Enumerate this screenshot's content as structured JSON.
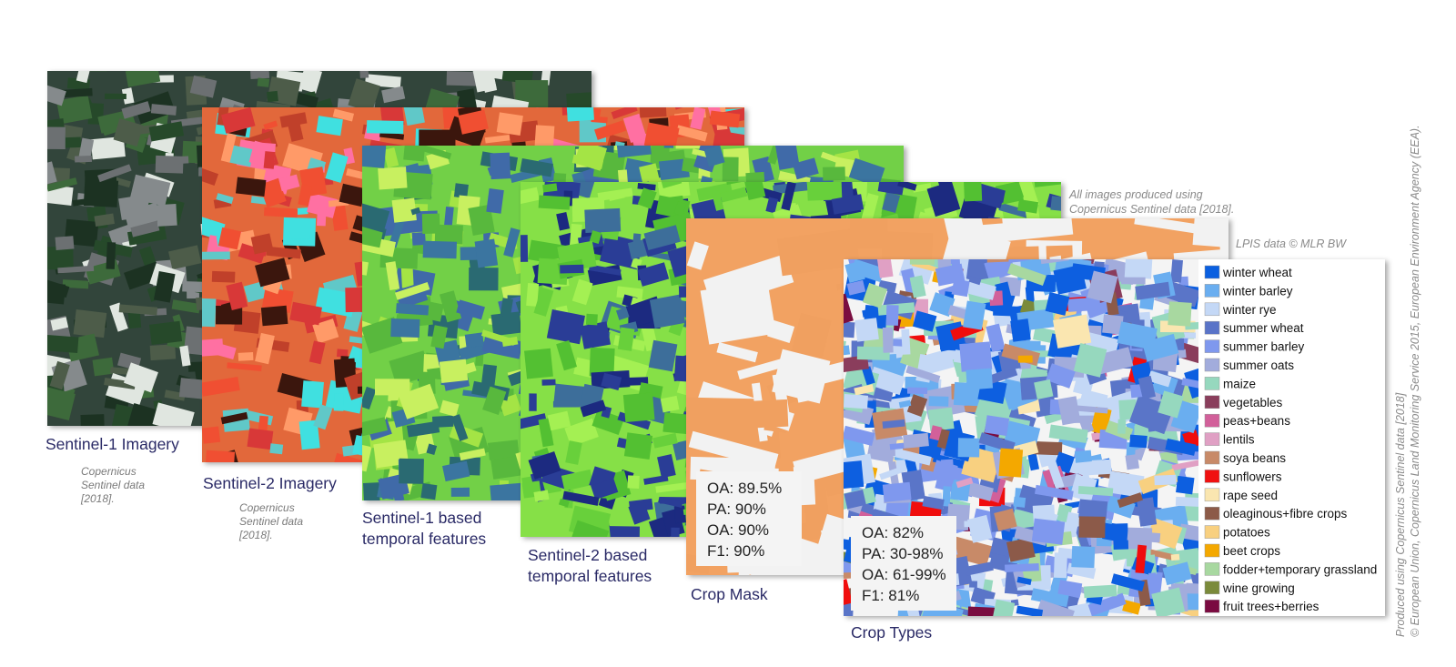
{
  "layers": [
    {
      "caption": [
        "Sentinel-1 Imagery"
      ],
      "credit": [
        "Copernicus",
        "Sentinel data",
        "[2018]."
      ]
    },
    {
      "caption": [
        "Sentinel-2 Imagery"
      ],
      "credit": [
        "Copernicus",
        "Sentinel data",
        "[2018]."
      ]
    },
    {
      "caption": [
        "Sentinel-1 based",
        "temporal features"
      ]
    },
    {
      "caption": [
        "Sentinel-2 based",
        "temporal features"
      ]
    },
    {
      "caption": [
        "Crop Mask"
      ],
      "stats": [
        "OA: 89.5%",
        "PA: 90%",
        "OA: 90%",
        "F1: 90%"
      ]
    },
    {
      "caption": [
        "Crop Types"
      ],
      "stats": [
        "OA: 82%",
        "PA: 30-98%",
        "OA: 61-99%",
        "F1: 81%"
      ]
    }
  ],
  "notes": {
    "all_images": [
      "All images produced using",
      "Copernicus Sentinel data [2018]."
    ],
    "lpis": "LPIS data © MLR BW",
    "side": [
      "Produced using Copernicus Sentinel data [2018]",
      "© European Union, Copernicus Land Monitoring Service 2015, European Environment Agency (EEA)."
    ]
  },
  "legend": [
    {
      "label": "winter wheat",
      "color": "#0a5fe0"
    },
    {
      "label": " winter barley",
      "color": "#6aaef0"
    },
    {
      "label": "winter rye",
      "color": "#c4d8f6"
    },
    {
      "label": "summer wheat",
      "color": "#5a74c8"
    },
    {
      "label": "summer barley",
      "color": "#7f98ee"
    },
    {
      "label": "summer oats",
      "color": "#a2acdc"
    },
    {
      "label": "maize",
      "color": "#96d8be"
    },
    {
      "label": "vegetables",
      "color": "#8a3e5c"
    },
    {
      "label": "peas+beans",
      "color": "#d2609a"
    },
    {
      "label": "lentils",
      "color": "#e0a0c4"
    },
    {
      "label": "soya beans",
      "color": "#c88a68"
    },
    {
      "label": "sunflowers",
      "color": "#f01010"
    },
    {
      "label": "rape seed",
      "color": "#fae6b0"
    },
    {
      "label": "oleaginous+fibre crops",
      "color": "#8c5a48"
    },
    {
      "label": "potatoes",
      "color": "#f8d080"
    },
    {
      "label": "beet crops",
      "color": "#f4a800"
    },
    {
      "label": "fodder+temporary grassland",
      "color": "#a8d8a0"
    },
    {
      "label": "wine growing",
      "color": "#7a8a3a"
    },
    {
      "label": "fruit trees+berries",
      "color": "#7a0a40"
    }
  ]
}
